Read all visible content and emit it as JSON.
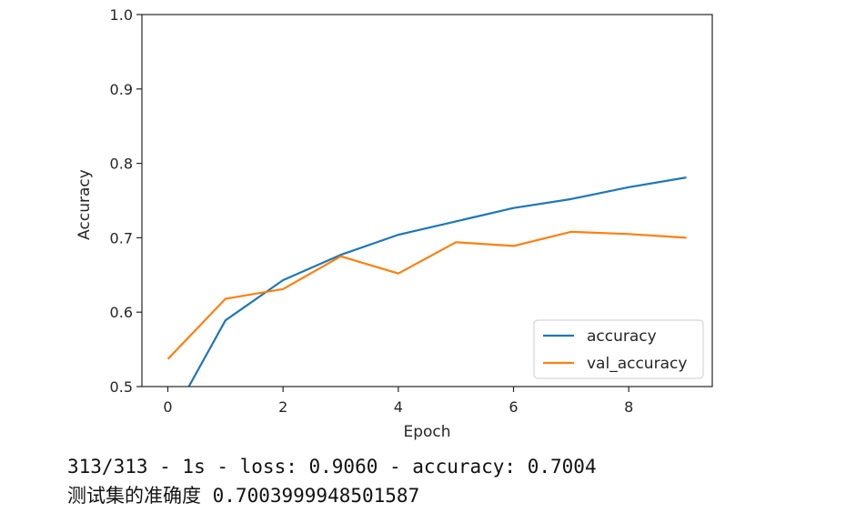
{
  "chart_data": {
    "type": "line",
    "xlabel": "Epoch",
    "ylabel": "Accuracy",
    "xlim": [
      -0.45,
      9.45
    ],
    "ylim": [
      0.5,
      1.0
    ],
    "xticks": [
      0,
      2,
      4,
      6,
      8
    ],
    "yticks": [
      0.5,
      0.6,
      0.7,
      0.8,
      0.9,
      1.0
    ],
    "grid": false,
    "legend_position": "lower-right",
    "x": [
      0,
      1,
      2,
      3,
      4,
      5,
      6,
      7,
      8,
      9
    ],
    "series": [
      {
        "name": "accuracy",
        "color": "#1f77b4",
        "values": [
          0.449,
          0.589,
          0.643,
          0.677,
          0.704,
          0.722,
          0.74,
          0.752,
          0.768,
          0.781
        ]
      },
      {
        "name": "val_accuracy",
        "color": "#ff7f0e",
        "values": [
          0.537,
          0.618,
          0.631,
          0.675,
          0.652,
          0.694,
          0.689,
          0.708,
          0.705,
          0.7
        ]
      }
    ]
  },
  "console": {
    "line1": "313/313 - 1s - loss: 0.9060 - accuracy: 0.7004",
    "line2": "测试集的准确度 0.7003999948501587"
  }
}
